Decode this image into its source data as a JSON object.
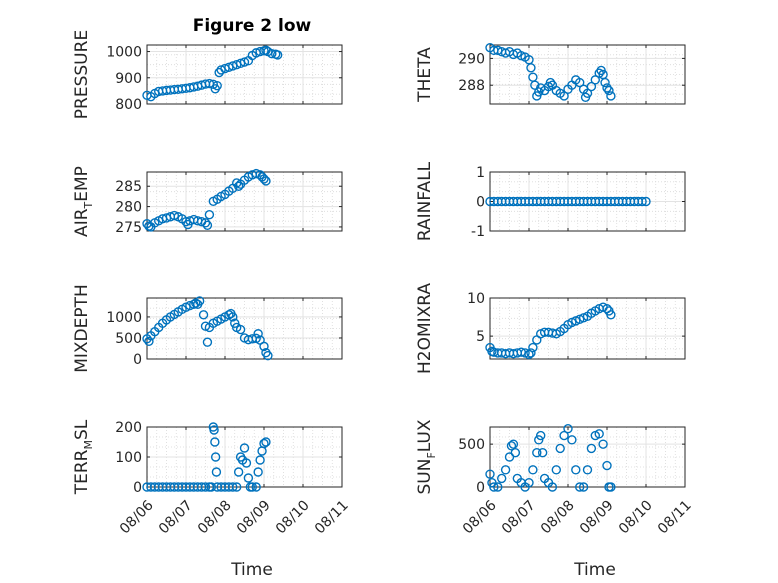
{
  "figure_title": "Figure 2 low",
  "x_axis_label": "Time",
  "x_tick_labels": [
    "08/06",
    "08/07",
    "08/08",
    "08/09",
    "08/10",
    "08/11"
  ],
  "colors": {
    "marker": "#0072BD",
    "axes": "#262626",
    "grid": "#d9d9d9",
    "background": "#ffffff"
  },
  "chart_data": [
    {
      "type": "scatter",
      "id": "pressure",
      "ylabel": {
        "main": "PRESSURE",
        "sub": "",
        "tail": ""
      },
      "title": "Figure 2 low",
      "yticks": [
        800,
        900,
        1000
      ],
      "ylim": [
        800,
        1025
      ],
      "xlim": [
        0,
        5
      ],
      "points": [
        [
          0.0,
          833
        ],
        [
          0.1,
          828
        ],
        [
          0.2,
          840
        ],
        [
          0.3,
          848
        ],
        [
          0.4,
          850
        ],
        [
          0.5,
          852
        ],
        [
          0.6,
          853
        ],
        [
          0.7,
          855
        ],
        [
          0.8,
          856
        ],
        [
          0.9,
          858
        ],
        [
          1.0,
          860
        ],
        [
          1.1,
          862
        ],
        [
          1.2,
          865
        ],
        [
          1.3,
          868
        ],
        [
          1.4,
          872
        ],
        [
          1.5,
          876
        ],
        [
          1.6,
          878
        ],
        [
          1.7,
          875
        ],
        [
          1.75,
          858
        ],
        [
          1.8,
          870
        ],
        [
          1.85,
          920
        ],
        [
          1.9,
          930
        ],
        [
          2.0,
          935
        ],
        [
          2.1,
          940
        ],
        [
          2.2,
          945
        ],
        [
          2.3,
          950
        ],
        [
          2.4,
          955
        ],
        [
          2.5,
          960
        ],
        [
          2.6,
          965
        ],
        [
          2.7,
          985
        ],
        [
          2.8,
          995
        ],
        [
          2.9,
          1000
        ],
        [
          3.0,
          1003
        ],
        [
          3.05,
          1005
        ],
        [
          3.1,
          1000
        ],
        [
          3.2,
          992
        ],
        [
          3.3,
          990
        ],
        [
          3.35,
          987
        ]
      ]
    },
    {
      "type": "scatter",
      "id": "theta",
      "ylabel": {
        "main": "THETA",
        "sub": "",
        "tail": ""
      },
      "yticks": [
        288,
        290
      ],
      "ylim": [
        286.6,
        291.0
      ],
      "xlim": [
        0,
        5
      ],
      "points": [
        [
          0.0,
          290.8
        ],
        [
          0.1,
          290.6
        ],
        [
          0.2,
          290.6
        ],
        [
          0.3,
          290.5
        ],
        [
          0.4,
          290.4
        ],
        [
          0.5,
          290.5
        ],
        [
          0.6,
          290.3
        ],
        [
          0.7,
          290.4
        ],
        [
          0.8,
          290.2
        ],
        [
          0.9,
          290.1
        ],
        [
          1.0,
          289.9
        ],
        [
          1.05,
          289.3
        ],
        [
          1.1,
          288.6
        ],
        [
          1.15,
          288.0
        ],
        [
          1.2,
          287.2
        ],
        [
          1.25,
          287.5
        ],
        [
          1.3,
          287.8
        ],
        [
          1.4,
          287.6
        ],
        [
          1.5,
          287.9
        ],
        [
          1.55,
          288.2
        ],
        [
          1.6,
          288.0
        ],
        [
          1.7,
          287.6
        ],
        [
          1.8,
          287.4
        ],
        [
          1.9,
          287.2
        ],
        [
          2.0,
          287.7
        ],
        [
          2.1,
          288.0
        ],
        [
          2.2,
          288.4
        ],
        [
          2.3,
          288.2
        ],
        [
          2.4,
          287.7
        ],
        [
          2.45,
          287.1
        ],
        [
          2.5,
          287.4
        ],
        [
          2.6,
          287.9
        ],
        [
          2.7,
          288.4
        ],
        [
          2.8,
          288.9
        ],
        [
          2.85,
          289.1
        ],
        [
          2.9,
          288.8
        ],
        [
          2.95,
          288.2
        ],
        [
          3.0,
          287.8
        ],
        [
          3.05,
          287.6
        ],
        [
          3.1,
          287.2
        ]
      ]
    },
    {
      "type": "scatter",
      "id": "air_temp",
      "ylabel": {
        "main": "AIR",
        "sub": "T",
        "tail": "EMP"
      },
      "yticks": [
        275,
        280,
        285
      ],
      "ylim": [
        274,
        288.5
      ],
      "xlim": [
        0,
        5
      ],
      "points": [
        [
          0.0,
          275.8
        ],
        [
          0.05,
          275.2
        ],
        [
          0.1,
          275.0
        ],
        [
          0.2,
          276.0
        ],
        [
          0.3,
          276.5
        ],
        [
          0.4,
          277.0
        ],
        [
          0.5,
          277.2
        ],
        [
          0.6,
          277.5
        ],
        [
          0.7,
          277.8
        ],
        [
          0.8,
          277.5
        ],
        [
          0.9,
          277.0
        ],
        [
          1.0,
          276.3
        ],
        [
          1.05,
          275.6
        ],
        [
          1.1,
          276.5
        ],
        [
          1.2,
          276.8
        ],
        [
          1.3,
          276.5
        ],
        [
          1.4,
          276.3
        ],
        [
          1.5,
          276.0
        ],
        [
          1.55,
          275.4
        ],
        [
          1.6,
          278.0
        ],
        [
          1.7,
          281.3
        ],
        [
          1.8,
          281.8
        ],
        [
          1.9,
          282.5
        ],
        [
          2.0,
          283.0
        ],
        [
          2.1,
          283.8
        ],
        [
          2.2,
          284.5
        ],
        [
          2.3,
          285.8
        ],
        [
          2.35,
          285.0
        ],
        [
          2.4,
          285.5
        ],
        [
          2.5,
          286.5
        ],
        [
          2.6,
          287.3
        ],
        [
          2.7,
          287.8
        ],
        [
          2.8,
          288.1
        ],
        [
          2.9,
          287.8
        ],
        [
          2.95,
          287.3
        ],
        [
          3.0,
          286.8
        ],
        [
          3.05,
          286.3
        ]
      ]
    },
    {
      "type": "scatter",
      "id": "rainfall",
      "ylabel": {
        "main": "RAINFALL",
        "sub": "",
        "tail": ""
      },
      "yticks": [
        -1,
        0,
        1
      ],
      "ylim": [
        -1,
        1
      ],
      "xlim": [
        0,
        5
      ],
      "points": [
        [
          0.0,
          0
        ],
        [
          0.1,
          0
        ],
        [
          0.2,
          0
        ],
        [
          0.3,
          0
        ],
        [
          0.4,
          0
        ],
        [
          0.5,
          0
        ],
        [
          0.6,
          0
        ],
        [
          0.7,
          0
        ],
        [
          0.8,
          0
        ],
        [
          0.9,
          0
        ],
        [
          1.0,
          0
        ],
        [
          1.1,
          0
        ],
        [
          1.2,
          0
        ],
        [
          1.3,
          0
        ],
        [
          1.4,
          0
        ],
        [
          1.5,
          0
        ],
        [
          1.6,
          0
        ],
        [
          1.7,
          0
        ],
        [
          1.8,
          0
        ],
        [
          1.9,
          0
        ],
        [
          2.0,
          0
        ],
        [
          2.1,
          0
        ],
        [
          2.2,
          0
        ],
        [
          2.3,
          0
        ],
        [
          2.4,
          0
        ],
        [
          2.5,
          0
        ],
        [
          2.6,
          0
        ],
        [
          2.7,
          0
        ],
        [
          2.8,
          0
        ],
        [
          2.9,
          0
        ],
        [
          3.0,
          0
        ],
        [
          3.1,
          0
        ],
        [
          3.2,
          0
        ],
        [
          3.3,
          0
        ],
        [
          3.4,
          0
        ],
        [
          3.5,
          0
        ],
        [
          3.6,
          0
        ],
        [
          3.7,
          0
        ],
        [
          3.8,
          0
        ],
        [
          3.9,
          0
        ],
        [
          4.0,
          0
        ]
      ]
    },
    {
      "type": "scatter",
      "id": "mixdepth",
      "ylabel": {
        "main": "MIXDEPTH",
        "sub": "",
        "tail": ""
      },
      "yticks": [
        0,
        500,
        1000
      ],
      "ylim": [
        0,
        1450
      ],
      "xlim": [
        0,
        5
      ],
      "points": [
        [
          0.0,
          480
        ],
        [
          0.05,
          420
        ],
        [
          0.1,
          550
        ],
        [
          0.2,
          650
        ],
        [
          0.3,
          750
        ],
        [
          0.4,
          850
        ],
        [
          0.5,
          930
        ],
        [
          0.6,
          1000
        ],
        [
          0.7,
          1060
        ],
        [
          0.8,
          1120
        ],
        [
          0.9,
          1180
        ],
        [
          1.0,
          1230
        ],
        [
          1.1,
          1270
        ],
        [
          1.2,
          1300
        ],
        [
          1.25,
          1330
        ],
        [
          1.3,
          1300
        ],
        [
          1.35,
          1380
        ],
        [
          1.45,
          1050
        ],
        [
          1.5,
          780
        ],
        [
          1.55,
          400
        ],
        [
          1.6,
          750
        ],
        [
          1.7,
          850
        ],
        [
          1.8,
          900
        ],
        [
          1.9,
          950
        ],
        [
          2.0,
          1000
        ],
        [
          2.1,
          1050
        ],
        [
          2.15,
          1080
        ],
        [
          2.2,
          1000
        ],
        [
          2.25,
          850
        ],
        [
          2.3,
          750
        ],
        [
          2.4,
          700
        ],
        [
          2.5,
          500
        ],
        [
          2.6,
          460
        ],
        [
          2.7,
          480
        ],
        [
          2.8,
          490
        ],
        [
          2.85,
          600
        ],
        [
          2.9,
          450
        ],
        [
          3.0,
          300
        ],
        [
          3.05,
          150
        ],
        [
          3.1,
          80
        ]
      ]
    },
    {
      "type": "scatter",
      "id": "h2omixra",
      "ylabel": {
        "main": "H2OMIXRA",
        "sub": "",
        "tail": ""
      },
      "yticks": [
        5,
        10
      ],
      "ylim": [
        2,
        10
      ],
      "xlim": [
        0,
        5
      ],
      "points": [
        [
          0.0,
          3.5
        ],
        [
          0.05,
          3.0
        ],
        [
          0.1,
          2.9
        ],
        [
          0.2,
          2.8
        ],
        [
          0.3,
          2.8
        ],
        [
          0.4,
          2.7
        ],
        [
          0.5,
          2.8
        ],
        [
          0.6,
          2.7
        ],
        [
          0.7,
          2.8
        ],
        [
          0.8,
          2.9
        ],
        [
          0.9,
          2.8
        ],
        [
          1.0,
          2.6
        ],
        [
          1.05,
          2.8
        ],
        [
          1.1,
          3.5
        ],
        [
          1.2,
          4.5
        ],
        [
          1.3,
          5.3
        ],
        [
          1.4,
          5.5
        ],
        [
          1.5,
          5.5
        ],
        [
          1.6,
          5.4
        ],
        [
          1.7,
          5.3
        ],
        [
          1.8,
          5.6
        ],
        [
          1.9,
          6.0
        ],
        [
          2.0,
          6.5
        ],
        [
          2.1,
          6.8
        ],
        [
          2.2,
          7.0
        ],
        [
          2.3,
          7.2
        ],
        [
          2.4,
          7.4
        ],
        [
          2.5,
          7.6
        ],
        [
          2.6,
          8.0
        ],
        [
          2.7,
          8.3
        ],
        [
          2.8,
          8.6
        ],
        [
          2.9,
          8.8
        ],
        [
          3.0,
          8.6
        ],
        [
          3.05,
          8.3
        ],
        [
          3.1,
          7.8
        ]
      ]
    },
    {
      "type": "scatter",
      "id": "terr_msl",
      "ylabel": {
        "main": "TERR",
        "sub": "M",
        "tail": "SL"
      },
      "yticks": [
        0,
        100,
        200
      ],
      "ylim": [
        0,
        200
      ],
      "xlim": [
        0,
        5
      ],
      "points": [
        [
          0.0,
          0
        ],
        [
          0.1,
          0
        ],
        [
          0.2,
          0
        ],
        [
          0.3,
          0
        ],
        [
          0.4,
          0
        ],
        [
          0.5,
          0
        ],
        [
          0.6,
          0
        ],
        [
          0.7,
          0
        ],
        [
          0.8,
          0
        ],
        [
          0.9,
          0
        ],
        [
          1.0,
          0
        ],
        [
          1.1,
          0
        ],
        [
          1.2,
          0
        ],
        [
          1.3,
          0
        ],
        [
          1.4,
          0
        ],
        [
          1.5,
          0
        ],
        [
          1.6,
          0
        ],
        [
          1.65,
          0
        ],
        [
          1.7,
          200
        ],
        [
          1.72,
          190
        ],
        [
          1.74,
          150
        ],
        [
          1.76,
          100
        ],
        [
          1.78,
          50
        ],
        [
          1.8,
          0
        ],
        [
          1.9,
          0
        ],
        [
          2.0,
          0
        ],
        [
          2.1,
          0
        ],
        [
          2.2,
          0
        ],
        [
          2.3,
          0
        ],
        [
          2.35,
          50
        ],
        [
          2.4,
          100
        ],
        [
          2.45,
          90
        ],
        [
          2.5,
          130
        ],
        [
          2.55,
          80
        ],
        [
          2.6,
          30
        ],
        [
          2.65,
          0
        ],
        [
          2.7,
          0
        ],
        [
          2.8,
          0
        ],
        [
          2.85,
          50
        ],
        [
          2.9,
          90
        ],
        [
          2.95,
          120
        ],
        [
          3.0,
          145
        ],
        [
          3.05,
          150
        ]
      ]
    },
    {
      "type": "scatter",
      "id": "sun_flux",
      "ylabel": {
        "main": "SUN",
        "sub": "F",
        "tail": "LUX"
      },
      "yticks": [
        0,
        500
      ],
      "ylim": [
        0,
        700
      ],
      "xlim": [
        0,
        5
      ],
      "points": [
        [
          0.0,
          150
        ],
        [
          0.05,
          50
        ],
        [
          0.1,
          0
        ],
        [
          0.2,
          0
        ],
        [
          0.3,
          100
        ],
        [
          0.4,
          200
        ],
        [
          0.5,
          350
        ],
        [
          0.55,
          480
        ],
        [
          0.6,
          500
        ],
        [
          0.65,
          400
        ],
        [
          0.7,
          100
        ],
        [
          0.8,
          50
        ],
        [
          0.9,
          0
        ],
        [
          1.0,
          50
        ],
        [
          1.1,
          200
        ],
        [
          1.2,
          400
        ],
        [
          1.25,
          550
        ],
        [
          1.3,
          600
        ],
        [
          1.35,
          400
        ],
        [
          1.4,
          100
        ],
        [
          1.5,
          50
        ],
        [
          1.6,
          0
        ],
        [
          1.7,
          200
        ],
        [
          1.8,
          450
        ],
        [
          1.9,
          600
        ],
        [
          2.0,
          680
        ],
        [
          2.1,
          550
        ],
        [
          2.2,
          200
        ],
        [
          2.3,
          0
        ],
        [
          2.4,
          0
        ],
        [
          2.5,
          200
        ],
        [
          2.6,
          450
        ],
        [
          2.7,
          600
        ],
        [
          2.8,
          620
        ],
        [
          2.9,
          500
        ],
        [
          3.0,
          250
        ],
        [
          3.05,
          0
        ],
        [
          3.1,
          0
        ]
      ]
    }
  ]
}
